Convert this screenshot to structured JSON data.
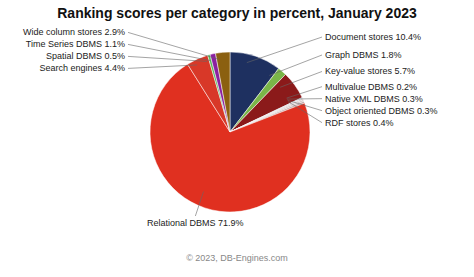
{
  "chart_data": {
    "type": "pie",
    "title": "Ranking scores per category in percent, January 2023",
    "annotations": [
      "© 2023, DB-Engines.com"
    ],
    "categories": [
      "Document stores 10.4%",
      "Graph DBMS 1.8%",
      "Key-value stores 5.7%",
      "Multivalue DBMS 0.2%",
      "Native XML DBMS 0.3%",
      "Object oriented DBMS 0.3%",
      "RDF stores 0.4%",
      "Relational DBMS 71.9%",
      "Search engines 4.4%",
      "Spatial DBMS 0.5%",
      "Time Series DBMS 1.1%",
      "Wide column stores 2.9%"
    ],
    "values": [
      10.4,
      1.8,
      5.7,
      0.2,
      0.3,
      0.3,
      0.4,
      71.9,
      4.4,
      0.5,
      1.1,
      2.9
    ],
    "colors": [
      "#1e3060",
      "#7ab648",
      "#8b1a1a",
      "#b0bece",
      "#d8c8c8",
      "#c8b8b8",
      "#c0a8a8",
      "#e03020",
      "#d83828",
      "#58b858",
      "#8b20a0",
      "#8b6010"
    ]
  }
}
